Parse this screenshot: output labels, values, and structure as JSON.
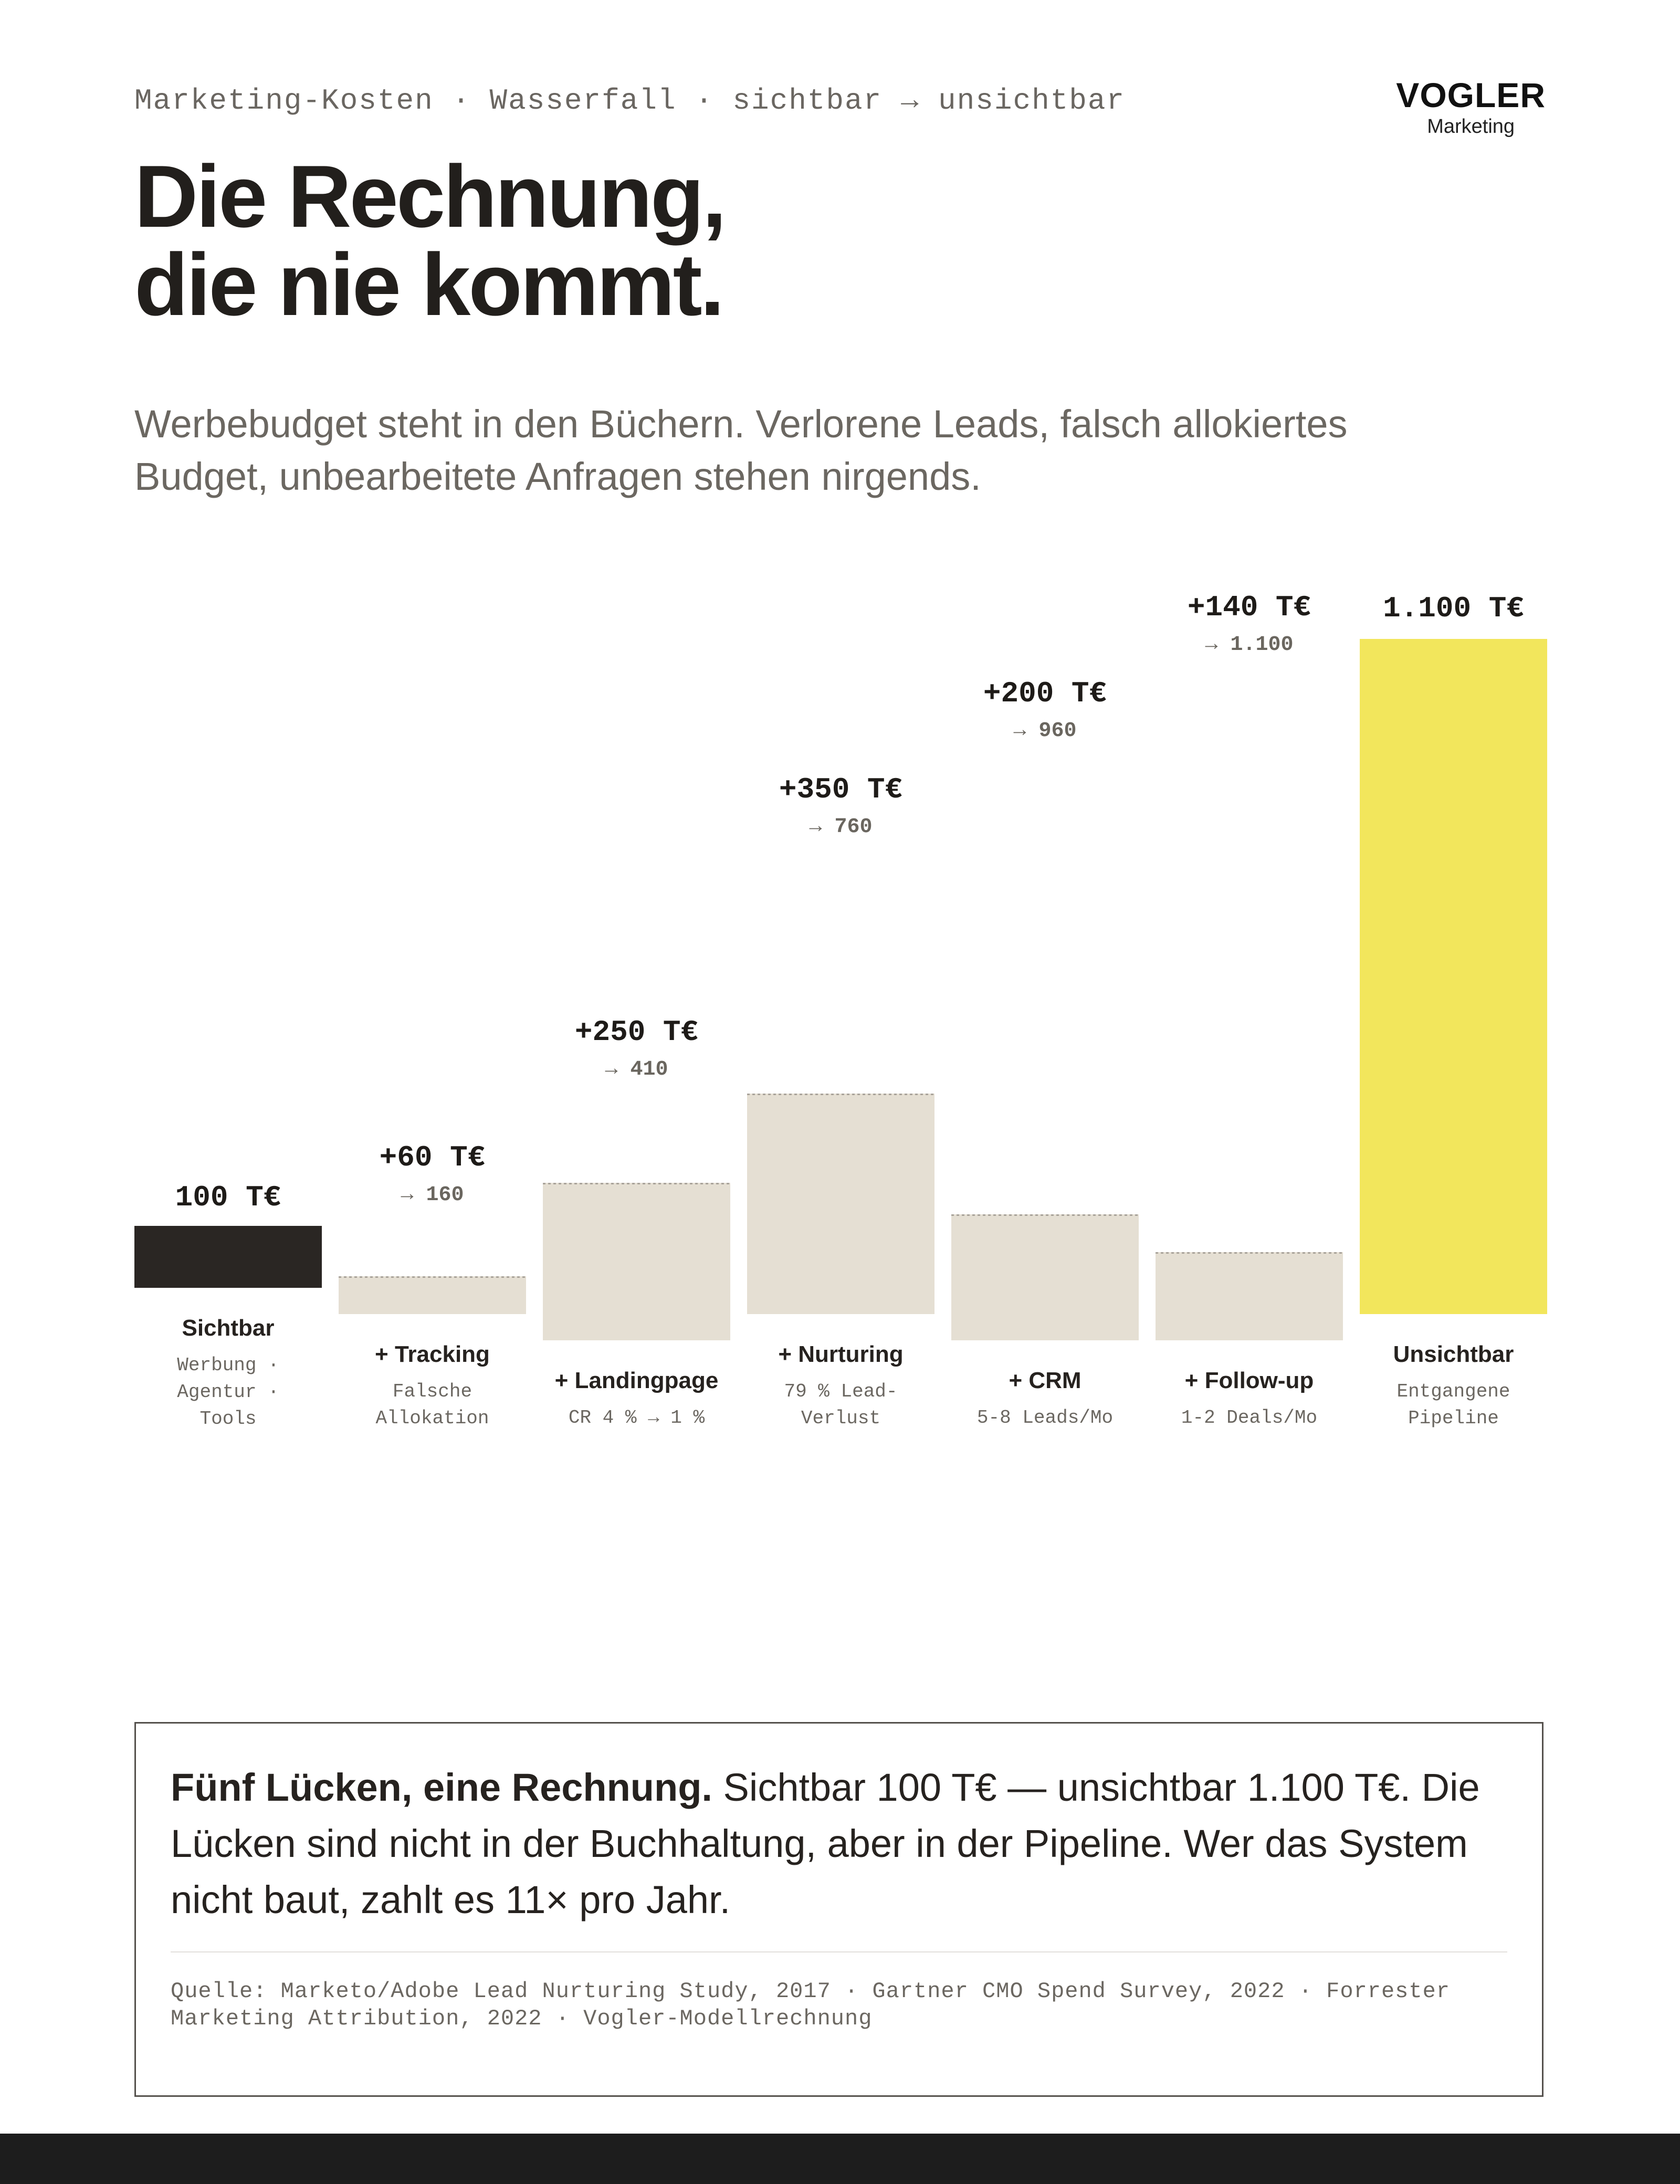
{
  "header": {
    "kicker": "Marketing-Kosten · Wasserfall · sichtbar → unsichtbar",
    "brand_name": "VOGLER",
    "brand_sub": "Marketing",
    "title_lines": [
      "Die Rechnung,",
      "die nie kommt."
    ],
    "subtitle_lines": [
      "Werbebudget steht in den Büchern. Verlorene Leads, falsch allokiertes",
      "Budget, unbearbeitete Anfragen stehen nirgends."
    ]
  },
  "chart_data": {
    "type": "waterfall",
    "unit": "T€",
    "colors": {
      "sichtbar": "#2a2623",
      "increment": "#e5dfd3",
      "unsichtbar": "#f2e65c",
      "value_text": "#1e1b18",
      "running_text": "#6a665f",
      "label_text": "#26221f",
      "sub_text": "#6b6761",
      "dotted": "#a9a39a"
    },
    "steps": [
      {
        "kind": "total",
        "color_key": "sichtbar",
        "value": 100,
        "value_label": "100 T€",
        "running_label": "",
        "label": "Sichtbar",
        "sub": [
          "Werbung ·",
          "Agentur ·",
          "Tools"
        ]
      },
      {
        "kind": "increment",
        "color_key": "increment",
        "value": 60,
        "value_label": "+60 T€",
        "running_label": "→ 160",
        "label": "+ Tracking",
        "sub": [
          "Falsche",
          "Allokation"
        ]
      },
      {
        "kind": "increment",
        "color_key": "increment",
        "value": 250,
        "value_label": "+250 T€",
        "running_label": "→ 410",
        "label": "+ Landingpage",
        "sub": [
          "CR 4 % → 1 %"
        ]
      },
      {
        "kind": "increment",
        "color_key": "increment",
        "value": 350,
        "value_label": "+350 T€",
        "running_label": "→ 760",
        "label": "+ Nurturing",
        "sub": [
          "79 % Lead-",
          "Verlust"
        ]
      },
      {
        "kind": "increment",
        "color_key": "increment",
        "value": 200,
        "value_label": "+200 T€",
        "running_label": "→ 960",
        "label": "+ CRM",
        "sub": [
          "5-8 Leads/Mo"
        ]
      },
      {
        "kind": "increment",
        "color_key": "increment",
        "value": 140,
        "value_label": "+140 T€",
        "running_label": "→ 1.100",
        "label": "+ Follow-up",
        "sub": [
          "1-2 Deals/Mo"
        ]
      },
      {
        "kind": "total",
        "color_key": "unsichtbar",
        "value": 1100,
        "value_label": "1.100 T€",
        "running_label": "",
        "label": "Unsichtbar",
        "sub": [
          "Entgangene",
          "Pipeline"
        ]
      }
    ]
  },
  "callout": {
    "bold": "Fünf Lücken, eine Rechnung.",
    "text": "Sichtbar 100 T€ — unsichtbar 1.100 T€. Die Lücken sind nicht in der Buchhaltung, aber in der Pipeline. Wer das System nicht baut, zahlt es 11× pro Jahr.",
    "source": "Quelle: Marketo/Adobe Lead Nurturing Study, 2017 · Gartner CMO Spend Survey, 2022 · Forrester Marketing Attribution, 2022 · Vogler-Modellrechnung"
  }
}
